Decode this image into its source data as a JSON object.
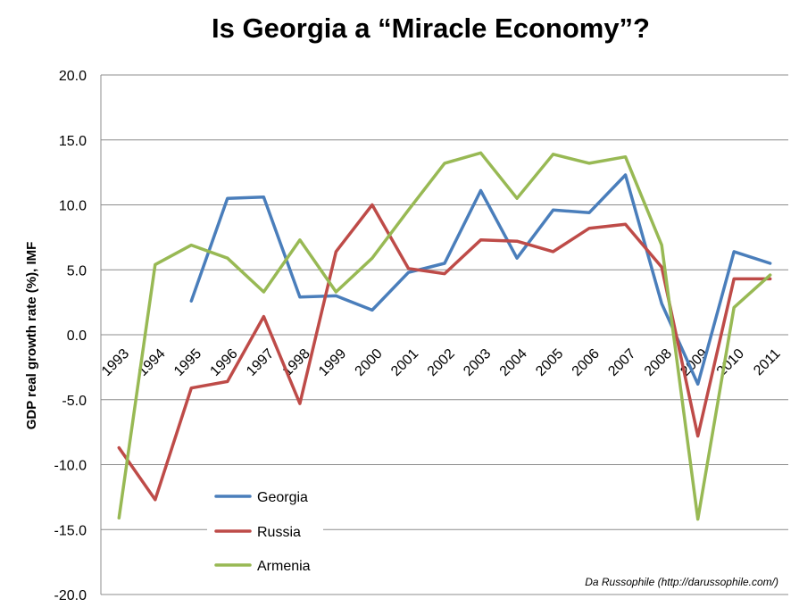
{
  "chart_data": {
    "type": "line",
    "title": "Is Georgia a “Miracle Economy”?",
    "ylabel": "GDP real growth rate (%), IMF",
    "xlabel": "",
    "ylim": [
      -20,
      20
    ],
    "y_ticks": [
      "20.0",
      "15.0",
      "10.0",
      "5.0",
      "0.0",
      "-5.0",
      "-10.0",
      "-15.0",
      "-20.0"
    ],
    "y_tick_values": [
      20,
      15,
      10,
      5,
      0,
      -5,
      -10,
      -15,
      -20
    ],
    "categories": [
      "1993",
      "1994",
      "1995",
      "1996",
      "1997",
      "1998",
      "1999",
      "2000",
      "2001",
      "2002",
      "2003",
      "2004",
      "2005",
      "2006",
      "2007",
      "2008",
      "2009",
      "2010",
      "2011"
    ],
    "grid": true,
    "legend_position": "bottom-left",
    "series": [
      {
        "name": "Georgia",
        "color": "#4a7ebb",
        "values": [
          null,
          null,
          2.6,
          10.5,
          10.6,
          2.9,
          3.0,
          1.9,
          4.8,
          5.5,
          11.1,
          5.9,
          9.6,
          9.4,
          12.3,
          2.4,
          -3.8,
          6.4,
          5.5
        ]
      },
      {
        "name": "Russia",
        "color": "#be4b48",
        "values": [
          -8.7,
          -12.7,
          -4.1,
          -3.6,
          1.4,
          -5.3,
          6.4,
          10.0,
          5.1,
          4.7,
          7.3,
          7.2,
          6.4,
          8.2,
          8.5,
          5.2,
          -7.8,
          4.3,
          4.3
        ]
      },
      {
        "name": "Armenia",
        "color": "#98b954",
        "values": [
          -14.1,
          5.4,
          6.9,
          5.9,
          3.3,
          7.3,
          3.3,
          5.9,
          9.6,
          13.2,
          14.0,
          10.5,
          13.9,
          13.2,
          13.7,
          6.9,
          -14.2,
          2.1,
          4.6
        ]
      }
    ],
    "annotation": "Da Russophile (http://darussophile.com/)"
  }
}
